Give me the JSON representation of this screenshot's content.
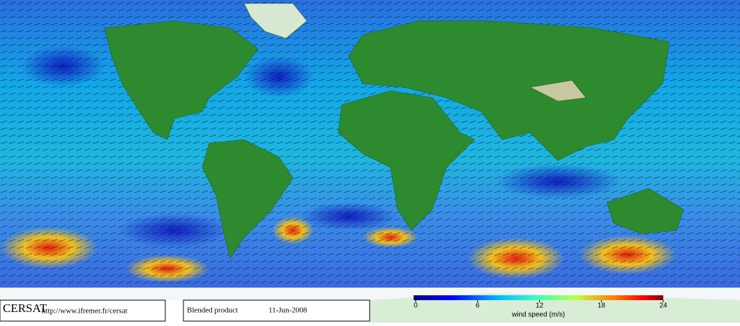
{
  "footer": {
    "logo": "CERSAT",
    "url": "http://www.ifremer.fr/cersat",
    "product": "Blended product",
    "date": "11-Jun-2008"
  },
  "colorbar": {
    "label": "wind speed (m/s)",
    "lim": [
      0,
      24
    ],
    "ticks": [
      0,
      6,
      12,
      18,
      24
    ]
  }
}
